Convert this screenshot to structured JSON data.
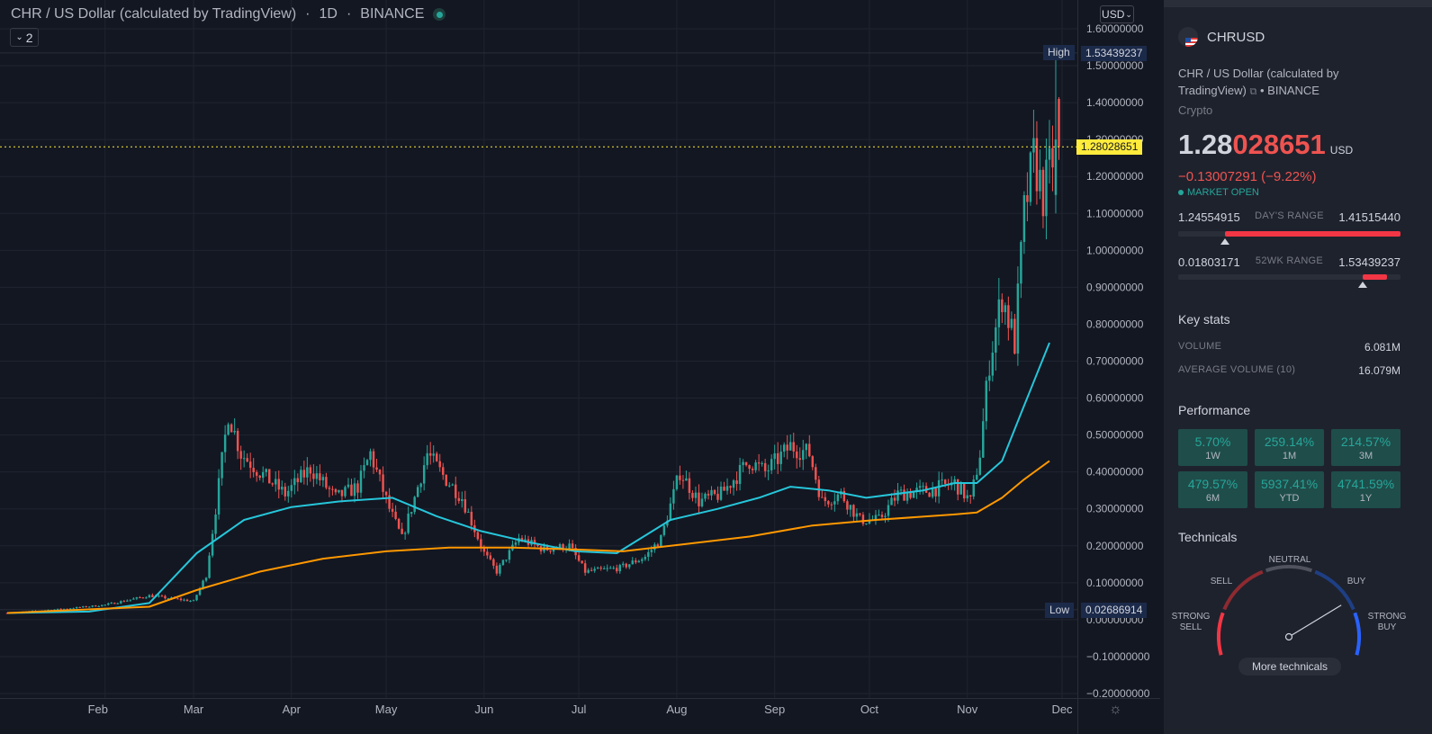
{
  "header": {
    "symbol_title": "CHR / US Dollar (calculated by TradingView)",
    "interval": "1D",
    "exchange": "BINANCE",
    "indicators_count": "2",
    "currency_button": "USD"
  },
  "price_tags": {
    "high_label": "High",
    "high_value": "1.53439237",
    "last_value": "1.28028651",
    "low_label": "Low",
    "low_value": "0.02686914"
  },
  "colors": {
    "background": "#131722",
    "up": "#26a69a",
    "down": "#ef5350",
    "ma_fast": "#26c6da",
    "ma_slow": "#ff9800",
    "last_price": "#ffeb3b"
  },
  "chart_data": {
    "type": "candlestick",
    "interval": "1D",
    "ylim": [
      -0.2,
      1.6
    ],
    "y_ticks": [
      "1.60000000",
      "1.50000000",
      "1.40000000",
      "1.30000000",
      "1.20000000",
      "1.10000000",
      "1.00000000",
      "0.90000000",
      "0.80000000",
      "0.70000000",
      "0.60000000",
      "0.50000000",
      "0.40000000",
      "0.30000000",
      "0.20000000",
      "0.10000000",
      "0.00000000",
      "−0.10000000",
      "−0.20000000"
    ],
    "x_ticks": [
      "Feb",
      "Mar",
      "Apr",
      "May",
      "Jun",
      "Jul",
      "Aug",
      "Sep",
      "Oct",
      "Nov",
      "Dec"
    ],
    "price_path": [
      {
        "date": "2021-01-01",
        "close": 0.018
      },
      {
        "date": "2021-01-20",
        "close": 0.03
      },
      {
        "date": "2021-02-01",
        "close": 0.04
      },
      {
        "date": "2021-02-15",
        "close": 0.065
      },
      {
        "date": "2021-03-01",
        "close": 0.05
      },
      {
        "date": "2021-03-05",
        "close": 0.12
      },
      {
        "date": "2021-03-08",
        "close": 0.3
      },
      {
        "date": "2021-03-12",
        "close": 0.56
      },
      {
        "date": "2021-03-16",
        "close": 0.45
      },
      {
        "date": "2021-03-22",
        "close": 0.4
      },
      {
        "date": "2021-03-30",
        "close": 0.34
      },
      {
        "date": "2021-04-07",
        "close": 0.41
      },
      {
        "date": "2021-04-15",
        "close": 0.33
      },
      {
        "date": "2021-04-22",
        "close": 0.36
      },
      {
        "date": "2021-04-26",
        "close": 0.45
      },
      {
        "date": "2021-05-02",
        "close": 0.3
      },
      {
        "date": "2021-05-06",
        "close": 0.22
      },
      {
        "date": "2021-05-10",
        "close": 0.33
      },
      {
        "date": "2021-05-14",
        "close": 0.45
      },
      {
        "date": "2021-05-19",
        "close": 0.39
      },
      {
        "date": "2021-05-25",
        "close": 0.33
      },
      {
        "date": "2021-06-01",
        "close": 0.18
      },
      {
        "date": "2021-06-05",
        "close": 0.13
      },
      {
        "date": "2021-06-12",
        "close": 0.22
      },
      {
        "date": "2021-06-20",
        "close": 0.19
      },
      {
        "date": "2021-06-28",
        "close": 0.2
      },
      {
        "date": "2021-07-03",
        "close": 0.13
      },
      {
        "date": "2021-07-14",
        "close": 0.14
      },
      {
        "date": "2021-07-22",
        "close": 0.17
      },
      {
        "date": "2021-07-27",
        "close": 0.22
      },
      {
        "date": "2021-08-02",
        "close": 0.4
      },
      {
        "date": "2021-08-08",
        "close": 0.32
      },
      {
        "date": "2021-08-15",
        "close": 0.34
      },
      {
        "date": "2021-08-24",
        "close": 0.43
      },
      {
        "date": "2021-08-29",
        "close": 0.4
      },
      {
        "date": "2021-09-06",
        "close": 0.47
      },
      {
        "date": "2021-09-12",
        "close": 0.45
      },
      {
        "date": "2021-09-16",
        "close": 0.32
      },
      {
        "date": "2021-09-22",
        "close": 0.34
      },
      {
        "date": "2021-09-28",
        "close": 0.27
      },
      {
        "date": "2021-10-04",
        "close": 0.27
      },
      {
        "date": "2021-10-10",
        "close": 0.34
      },
      {
        "date": "2021-10-20",
        "close": 0.35
      },
      {
        "date": "2021-10-28",
        "close": 0.37
      },
      {
        "date": "2021-11-02",
        "close": 0.32
      },
      {
        "date": "2021-11-05",
        "close": 0.45
      },
      {
        "date": "2021-11-08",
        "close": 0.7
      },
      {
        "date": "2021-11-12",
        "close": 0.88
      },
      {
        "date": "2021-11-16",
        "close": 0.75
      },
      {
        "date": "2021-11-19",
        "close": 1.1
      },
      {
        "date": "2021-11-22",
        "close": 1.25
      },
      {
        "date": "2021-11-25",
        "close": 1.15
      },
      {
        "date": "2021-11-28",
        "close": 1.25
      },
      {
        "date": "2021-11-30",
        "close": 1.4
      },
      {
        "date": "2021-12-01",
        "close": 1.28
      }
    ],
    "high": 1.53439237,
    "low": 0.02686914,
    "last": 1.28028651,
    "moving_averages": [
      {
        "color": "#26c6da",
        "points": [
          [
            0,
            0.018
          ],
          [
            26,
            0.022
          ],
          [
            45,
            0.045
          ],
          [
            60,
            0.18
          ],
          [
            75,
            0.27
          ],
          [
            90,
            0.305
          ],
          [
            105,
            0.32
          ],
          [
            122,
            0.33
          ],
          [
            136,
            0.28
          ],
          [
            150,
            0.24
          ],
          [
            165,
            0.21
          ],
          [
            180,
            0.185
          ],
          [
            193,
            0.18
          ],
          [
            210,
            0.27
          ],
          [
            225,
            0.3
          ],
          [
            238,
            0.33
          ],
          [
            248,
            0.36
          ],
          [
            260,
            0.35
          ],
          [
            272,
            0.33
          ],
          [
            290,
            0.35
          ],
          [
            300,
            0.37
          ],
          [
            307,
            0.37
          ],
          [
            315,
            0.43
          ],
          [
            322,
            0.58
          ],
          [
            330,
            0.75
          ]
        ]
      },
      {
        "color": "#ff9800",
        "points": [
          [
            0,
            0.018
          ],
          [
            45,
            0.035
          ],
          [
            60,
            0.08
          ],
          [
            80,
            0.13
          ],
          [
            100,
            0.165
          ],
          [
            120,
            0.185
          ],
          [
            140,
            0.195
          ],
          [
            160,
            0.195
          ],
          [
            180,
            0.19
          ],
          [
            195,
            0.185
          ],
          [
            215,
            0.205
          ],
          [
            235,
            0.225
          ],
          [
            255,
            0.255
          ],
          [
            275,
            0.27
          ],
          [
            300,
            0.285
          ],
          [
            307,
            0.29
          ],
          [
            315,
            0.33
          ],
          [
            322,
            0.38
          ],
          [
            330,
            0.43
          ]
        ]
      }
    ]
  },
  "side_panel": {
    "symbol": "CHRUSD",
    "description": "CHR / US Dollar (calculated by TradingView)",
    "exchange": "BINANCE",
    "category": "Crypto",
    "price_main": "1.28",
    "price_tail": "028651",
    "price_currency": "USD",
    "change": "−0.13007291 (−9.22%)",
    "market_status": "MARKET OPEN",
    "days_range": {
      "low": "1.24554915",
      "label": "DAY'S RANGE",
      "high": "1.41515440",
      "marker": 0.21
    },
    "wk52_range": {
      "low": "0.01803171",
      "label": "52WK RANGE",
      "high": "1.53439237",
      "marker": 0.83
    },
    "key_stats_title": "Key stats",
    "stats": [
      {
        "label": "VOLUME",
        "value": "6.081M"
      },
      {
        "label": "AVERAGE VOLUME (10)",
        "value": "16.079M"
      }
    ],
    "performance_title": "Performance",
    "performance": [
      {
        "value": "5.70%",
        "period": "1W"
      },
      {
        "value": "259.14%",
        "period": "1M"
      },
      {
        "value": "214.57%",
        "period": "3M"
      },
      {
        "value": "479.57%",
        "period": "6M"
      },
      {
        "value": "5937.41%",
        "period": "YTD"
      },
      {
        "value": "4741.59%",
        "period": "1Y"
      }
    ],
    "technicals_title": "Technicals",
    "gauge": {
      "strong_sell_1": "STRONG",
      "strong_sell_2": "SELL",
      "sell": "SELL",
      "neutral": "NEUTRAL",
      "buy": "BUY",
      "strong_buy_1": "STRONG",
      "strong_buy_2": "BUY",
      "needle": 0.78
    },
    "more_button": "More technicals"
  }
}
